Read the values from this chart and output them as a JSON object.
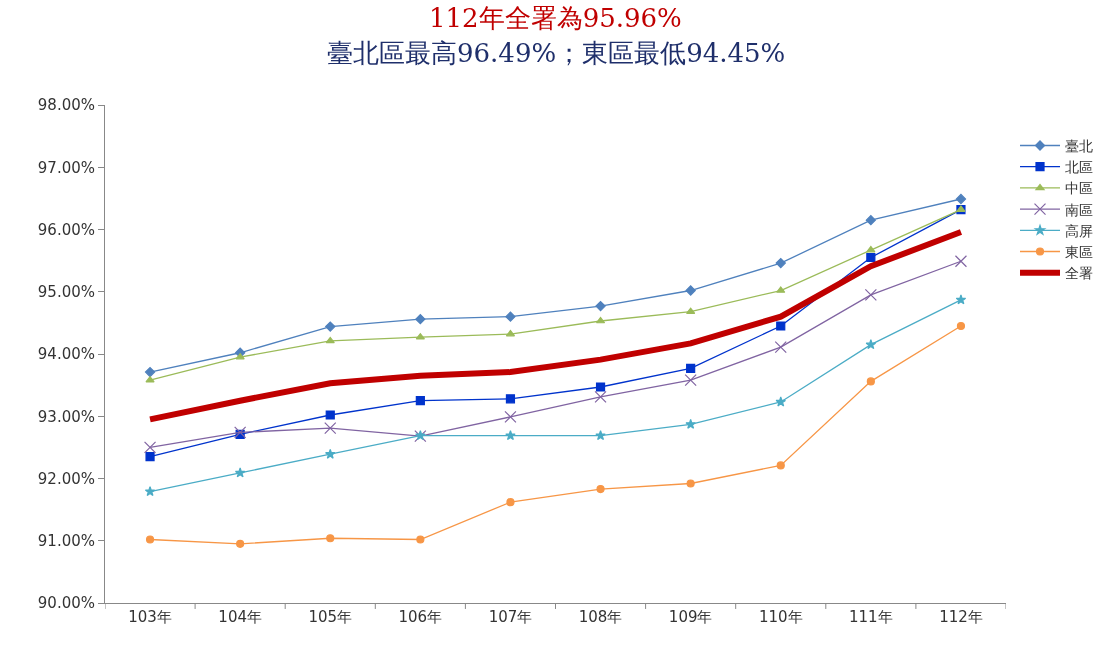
{
  "chart_data": {
    "type": "line",
    "title": "112年全署為95.96%",
    "subtitle": "臺北區最高96.49%；東區最低94.45%",
    "categories": [
      "103年",
      "104年",
      "105年",
      "106年",
      "107年",
      "108年",
      "109年",
      "110年",
      "111年",
      "112年"
    ],
    "series": [
      {
        "name": "臺北",
        "color": "#4f81bd",
        "marker": "diamond",
        "values": [
          93.71,
          94.02,
          94.44,
          94.56,
          94.6,
          94.77,
          95.02,
          95.46,
          96.15,
          96.49
        ]
      },
      {
        "name": "北區",
        "color": "#0033cc",
        "marker": "square",
        "values": [
          92.35,
          92.71,
          93.02,
          93.25,
          93.28,
          93.47,
          93.77,
          94.45,
          95.55,
          96.32
        ]
      },
      {
        "name": "中區",
        "color": "#9bbb59",
        "marker": "triangle",
        "values": [
          93.58,
          93.95,
          94.21,
          94.27,
          94.32,
          94.53,
          94.68,
          95.02,
          95.67,
          96.32
        ]
      },
      {
        "name": "南區",
        "color": "#8064a2",
        "marker": "cross",
        "values": [
          92.5,
          92.74,
          92.81,
          92.68,
          92.99,
          93.31,
          93.58,
          94.11,
          94.95,
          95.49
        ]
      },
      {
        "name": "高屏",
        "color": "#4bacc6",
        "marker": "star",
        "values": [
          91.79,
          92.09,
          92.39,
          92.69,
          92.69,
          92.69,
          92.87,
          93.23,
          94.15,
          94.87
        ]
      },
      {
        "name": "東區",
        "color": "#f79646",
        "marker": "circle",
        "values": [
          91.02,
          90.95,
          91.04,
          91.02,
          91.62,
          91.83,
          91.92,
          92.21,
          93.56,
          94.45
        ]
      },
      {
        "name": "全署",
        "color": "#c00000",
        "marker": "none",
        "values": [
          92.95,
          93.25,
          93.53,
          93.65,
          93.71,
          93.91,
          94.17,
          94.6,
          95.41,
          95.96
        ]
      }
    ],
    "ylim": [
      90,
      98
    ],
    "yticks": [
      {
        "value": 90,
        "label": "90.00%"
      },
      {
        "value": 91,
        "label": "91.00%"
      },
      {
        "value": 92,
        "label": "92.00%"
      },
      {
        "value": 93,
        "label": "93.00%"
      },
      {
        "value": 94,
        "label": "94.00%"
      },
      {
        "value": 95,
        "label": "95.00%"
      },
      {
        "value": 96,
        "label": "96.00%"
      },
      {
        "value": 97,
        "label": "97.00%"
      },
      {
        "value": 98,
        "label": "98.00%"
      }
    ],
    "grid": false,
    "legend": "right",
    "line_style": "solid"
  }
}
